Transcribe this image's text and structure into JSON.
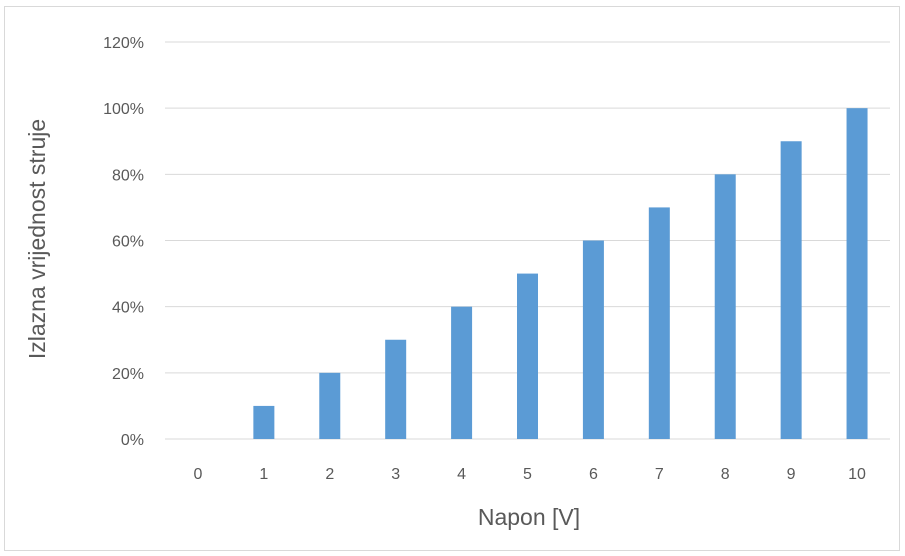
{
  "chart_data": {
    "type": "bar",
    "title": "",
    "xlabel": "Napon [V]",
    "ylabel": "Izlazna vrijednost struje",
    "categories": [
      "0",
      "1",
      "2",
      "3",
      "4",
      "5",
      "6",
      "7",
      "8",
      "9",
      "10"
    ],
    "values": [
      0,
      10,
      20,
      30,
      40,
      50,
      60,
      70,
      80,
      90,
      100
    ],
    "ylim": [
      0,
      120
    ],
    "yticks": [
      "0%",
      "20%",
      "40%",
      "60%",
      "80%",
      "100%",
      "120%"
    ],
    "grid": true,
    "legend": "none",
    "bar_color": "#5b9bd5",
    "grid_color": "#d9d9d9"
  }
}
